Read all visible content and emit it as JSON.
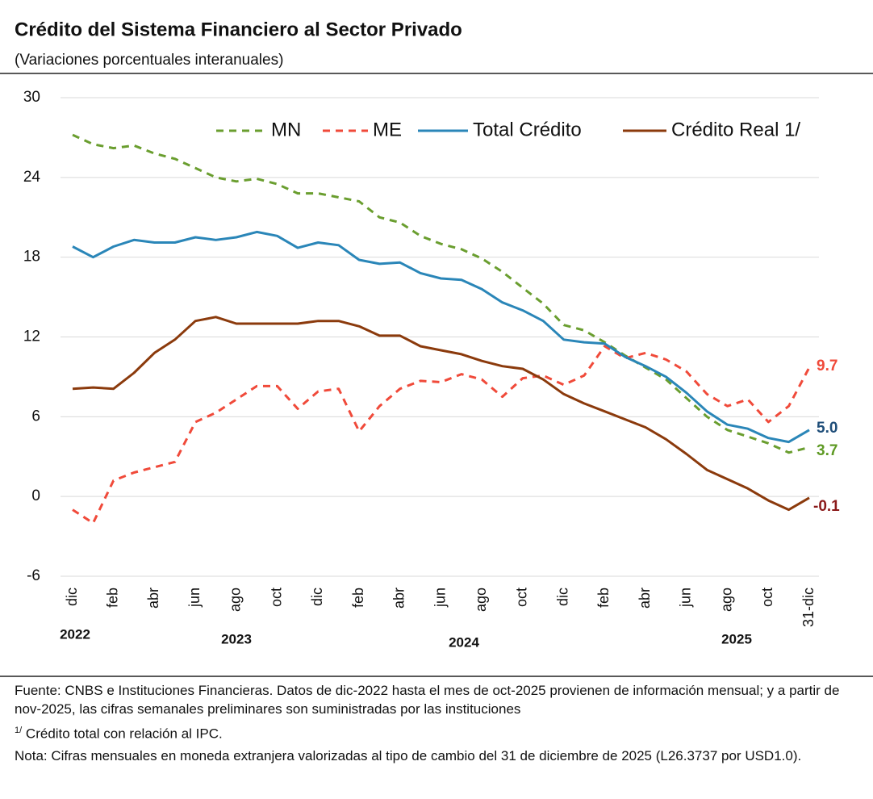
{
  "chart_data": {
    "type": "line",
    "title": "Crédito del Sistema Financiero al Sector Privado",
    "subtitle": "(Variaciones porcentuales interanuales)",
    "categories": [
      "dic",
      null,
      "feb",
      null,
      "abr",
      null,
      "jun",
      null,
      "ago",
      null,
      "oct",
      null,
      "dic",
      null,
      "feb",
      null,
      "abr",
      null,
      "jun",
      null,
      "ago",
      null,
      "oct",
      null,
      "dic",
      null,
      "feb",
      null,
      "abr",
      null,
      "jun",
      null,
      "ago",
      null,
      "oct",
      null,
      "31-dic"
    ],
    "years": [
      "2022",
      "2023",
      "2024",
      "2025"
    ],
    "ylim": [
      -6,
      30
    ],
    "yticks": [
      -6,
      0,
      6,
      12,
      18,
      24,
      30
    ],
    "grid": true,
    "legend": "top",
    "series": [
      {
        "name": "MN",
        "color": "#6a9e2f",
        "dashed": true,
        "label_color": "#5f9a25",
        "values": [
          27.2,
          26.5,
          26.2,
          26.4,
          25.8,
          25.4,
          24.7,
          24.0,
          23.7,
          23.9,
          23.5,
          22.8,
          22.8,
          22.5,
          22.2,
          21.0,
          20.6,
          19.6,
          19.0,
          18.6,
          17.9,
          16.9,
          15.7,
          14.5,
          12.9,
          12.5,
          11.6,
          10.6,
          9.7,
          8.8,
          7.4,
          6.0,
          5.0,
          4.5,
          4.0,
          3.3,
          3.7
        ],
        "value_labels": [
          null,
          null,
          null,
          null,
          null,
          null,
          null,
          null,
          null,
          null,
          null,
          null,
          null,
          null,
          null,
          null,
          null,
          null,
          null,
          null,
          null,
          null,
          null,
          null,
          null,
          null,
          null,
          null,
          null,
          null,
          null,
          null,
          null,
          null,
          null,
          null,
          "3.7"
        ]
      },
      {
        "name": "ME",
        "color": "#f04a3a",
        "dashed": true,
        "label_color": "#f04a3a",
        "values": [
          -1.0,
          -2.0,
          1.2,
          1.8,
          2.2,
          2.6,
          5.6,
          6.3,
          7.3,
          8.3,
          8.3,
          6.6,
          7.9,
          8.1,
          4.9,
          6.8,
          8.1,
          8.7,
          8.6,
          9.2,
          8.8,
          7.5,
          8.9,
          9.1,
          8.4,
          9.1,
          11.3,
          10.4,
          10.8,
          10.3,
          9.4,
          7.7,
          6.8,
          7.3,
          5.6,
          6.8,
          9.7
        ],
        "value_labels": [
          null,
          null,
          null,
          null,
          null,
          null,
          null,
          null,
          null,
          null,
          null,
          null,
          null,
          null,
          null,
          null,
          null,
          null,
          null,
          null,
          null,
          null,
          null,
          null,
          null,
          null,
          null,
          null,
          null,
          null,
          null,
          null,
          null,
          null,
          null,
          null,
          "9.7"
        ]
      },
      {
        "name": "Total Crédito",
        "color": "#2a86b8",
        "dashed": false,
        "label_color": "#1f4e79",
        "values": [
          18.8,
          18.0,
          18.8,
          19.3,
          19.1,
          19.1,
          19.5,
          19.3,
          19.5,
          19.9,
          19.6,
          18.7,
          19.1,
          18.9,
          17.8,
          17.5,
          17.6,
          16.8,
          16.4,
          16.3,
          15.6,
          14.6,
          14.0,
          13.2,
          11.8,
          11.6,
          11.5,
          10.5,
          9.8,
          9.0,
          7.8,
          6.4,
          5.4,
          5.1,
          4.4,
          4.1,
          5.0
        ],
        "value_labels": [
          null,
          null,
          null,
          null,
          null,
          null,
          null,
          null,
          null,
          null,
          null,
          null,
          null,
          null,
          null,
          null,
          null,
          null,
          null,
          null,
          null,
          null,
          null,
          null,
          null,
          null,
          null,
          null,
          null,
          null,
          null,
          null,
          null,
          null,
          null,
          null,
          "5.0"
        ]
      },
      {
        "name": "Crédito Real 1/",
        "color": "#8b3a0c",
        "dashed": false,
        "label_color": "#8b1a1a",
        "values": [
          8.1,
          8.2,
          8.1,
          9.3,
          10.8,
          11.8,
          13.2,
          13.5,
          13.0,
          13.0,
          13.0,
          13.0,
          13.2,
          13.2,
          12.8,
          12.1,
          12.1,
          11.3,
          11.0,
          10.7,
          10.2,
          9.8,
          9.6,
          8.8,
          7.7,
          7.0,
          6.4,
          5.8,
          5.2,
          4.3,
          3.2,
          2.0,
          1.3,
          0.6,
          -0.3,
          -1.0,
          -0.1
        ],
        "value_labels": [
          null,
          null,
          null,
          null,
          null,
          null,
          null,
          null,
          null,
          null,
          null,
          null,
          null,
          null,
          null,
          null,
          null,
          null,
          null,
          null,
          null,
          null,
          null,
          null,
          null,
          null,
          null,
          null,
          null,
          null,
          null,
          null,
          null,
          null,
          null,
          null,
          "-0.1"
        ]
      }
    ]
  },
  "notes": {
    "source": "Fuente: CNBS e Instituciones Financieras. Datos de dic-2022 hasta el mes de oct-2025 provienen de información mensual; y a partir de nov-2025, las cifras semanales preliminares son suministradas por las instituciones",
    "footnote_mark": "1/",
    "footnote": "Crédito total con relación al IPC.",
    "nota": "Nota: Cifras mensuales en moneda extranjera valorizadas al tipo de cambio del 31 de diciembre de 2025 (L26.3737 por USD1.0)."
  }
}
